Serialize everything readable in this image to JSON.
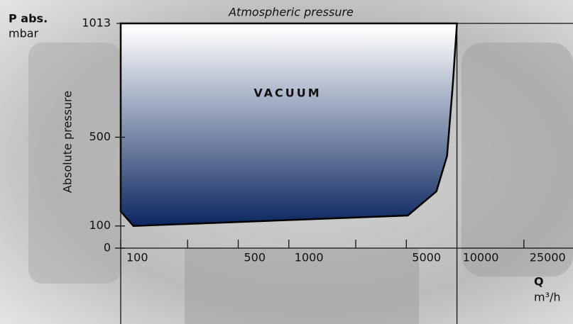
{
  "chart_data": {
    "type": "area",
    "title": "Atmospheric pressure",
    "y_label_short": "P abs.",
    "y_unit": "mbar",
    "y_label": "Absolute pressure",
    "x_label": "Q",
    "x_unit": "m³/h",
    "annotation": "VACUUM",
    "x_scale": "log",
    "xlim": [
      100,
      49000
    ],
    "ylim": [
      0,
      1013
    ],
    "xticks": [
      100,
      500,
      1000,
      5000,
      10000,
      25000
    ],
    "minor_xticks": [
      250,
      2500
    ],
    "yticks": [
      0,
      100,
      500,
      1013
    ],
    "color_top": "#ffffff",
    "color_bottom": "#0b2660",
    "x": [
      100,
      100,
      119,
      5100,
      7550,
      8730,
      9440,
      10000
    ],
    "y": [
      1013,
      166,
      100,
      147,
      256,
      415,
      735,
      1013
    ]
  }
}
